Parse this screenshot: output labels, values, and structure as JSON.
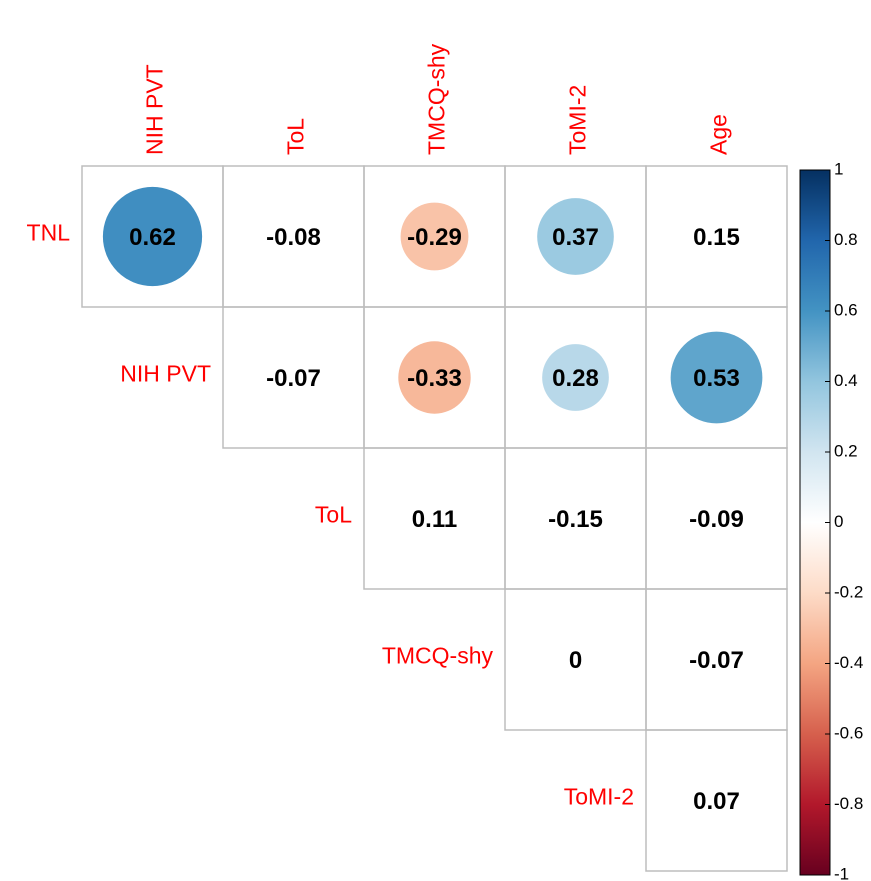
{
  "chart_data": {
    "type": "corrplot",
    "rows": [
      "TNL",
      "NIH PVT",
      "ToL",
      "TMCQ-shy",
      "ToMI-2"
    ],
    "columns": [
      "NIH PVT",
      "ToL",
      "TMCQ-shy",
      "ToMI-2",
      "Age"
    ],
    "values": [
      [
        0.62,
        -0.08,
        -0.29,
        0.37,
        0.15
      ],
      [
        null,
        -0.07,
        -0.33,
        0.28,
        0.53
      ],
      [
        null,
        null,
        0.11,
        -0.15,
        -0.09
      ],
      [
        null,
        null,
        null,
        0,
        -0.07
      ],
      [
        null,
        null,
        null,
        null,
        0.07
      ]
    ],
    "circles": [
      [
        true,
        false,
        true,
        true,
        false
      ],
      [
        false,
        false,
        true,
        true,
        true
      ],
      [
        false,
        false,
        false,
        false,
        false
      ],
      [
        false,
        false,
        false,
        false,
        false
      ],
      [
        false,
        false,
        false,
        false,
        false
      ]
    ],
    "colors": [
      "#67001F",
      "#B2182B",
      "#D6604D",
      "#F4A582",
      "#FDDBC7",
      "#FFFFFF",
      "#D1E5F0",
      "#92C5DE",
      "#4393C3",
      "#2166AC",
      "#053061"
    ],
    "label_color": "#FF0000",
    "ylim": [
      -1,
      1
    ],
    "yticks": [
      -1,
      -0.8,
      -0.6,
      -0.4,
      -0.2,
      0,
      0.2,
      0.4,
      0.6,
      0.8,
      1
    ]
  }
}
